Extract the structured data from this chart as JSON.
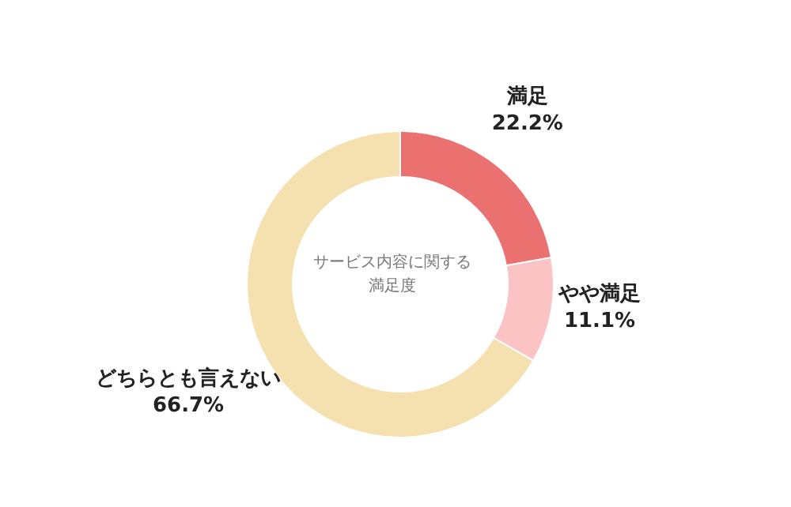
{
  "chart_data": {
    "type": "donut",
    "title": "サービス内容に関する満足度",
    "categories": [
      "満足",
      "やや満足",
      "どちらとも言えない"
    ],
    "values": [
      22.2,
      11.1,
      66.7
    ],
    "colors": [
      "#eb7070",
      "#fcc3c4",
      "#f5e0b0"
    ],
    "value_labels": [
      "22.2%",
      "11.1%",
      "66.7%"
    ]
  }
}
